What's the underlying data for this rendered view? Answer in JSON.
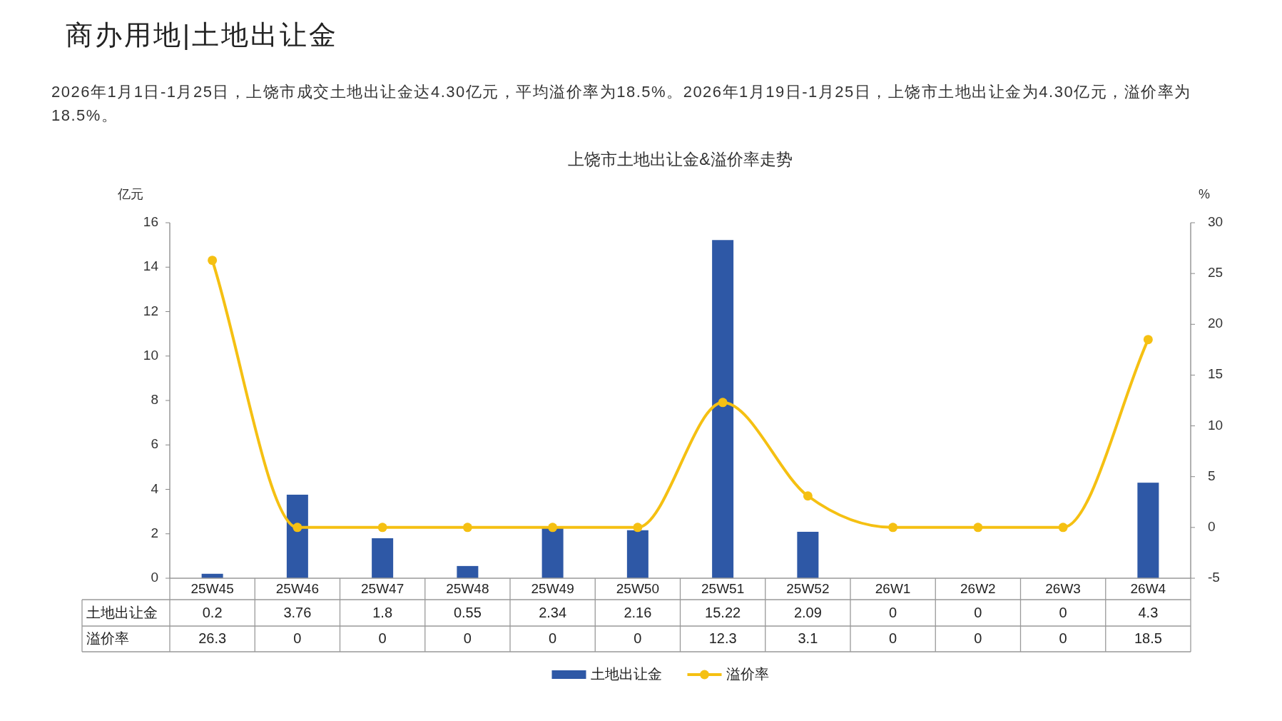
{
  "chart_data": {
    "type": "bar",
    "title": "上饶市土地出让金&溢价率走势",
    "annotations": [
      "商办用地|土地出让金",
      "2026年1月1日-1月25日，上饶市成交土地出让金达4.30亿元，平均溢价率为18.5%。2026年1月19日-1月25日，上饶市土地出让金为4.30亿元，溢价率为18.5%。"
    ],
    "ylabel": "亿元",
    "y2label": "%",
    "categories": [
      "25W45",
      "25W46",
      "25W47",
      "25W48",
      "25W49",
      "25W50",
      "25W51",
      "25W52",
      "26W1",
      "26W2",
      "26W3",
      "26W4"
    ],
    "series": [
      {
        "name": "土地出让金",
        "color": "#2e58a6",
        "values": [
          0.2,
          3.76,
          1.8,
          0.55,
          2.34,
          2.16,
          15.22,
          2.09,
          0,
          0,
          0,
          4.3
        ]
      },
      {
        "name": "溢价率",
        "type": "line",
        "axis": "y2",
        "color": "#f5c012",
        "marker": "circle",
        "values": [
          26.3,
          0,
          0,
          0,
          0,
          0,
          12.3,
          3.1,
          0,
          0,
          0,
          18.5
        ]
      }
    ],
    "ylim": [
      0,
      16
    ],
    "yticks": [
      0,
      2,
      4,
      6,
      8,
      10,
      12,
      14,
      16
    ],
    "y2lim": [
      -5,
      30
    ],
    "y2ticks": [
      -5,
      0,
      5,
      10,
      15,
      20,
      25,
      30
    ],
    "data_labels": true,
    "legend": "bottom"
  }
}
